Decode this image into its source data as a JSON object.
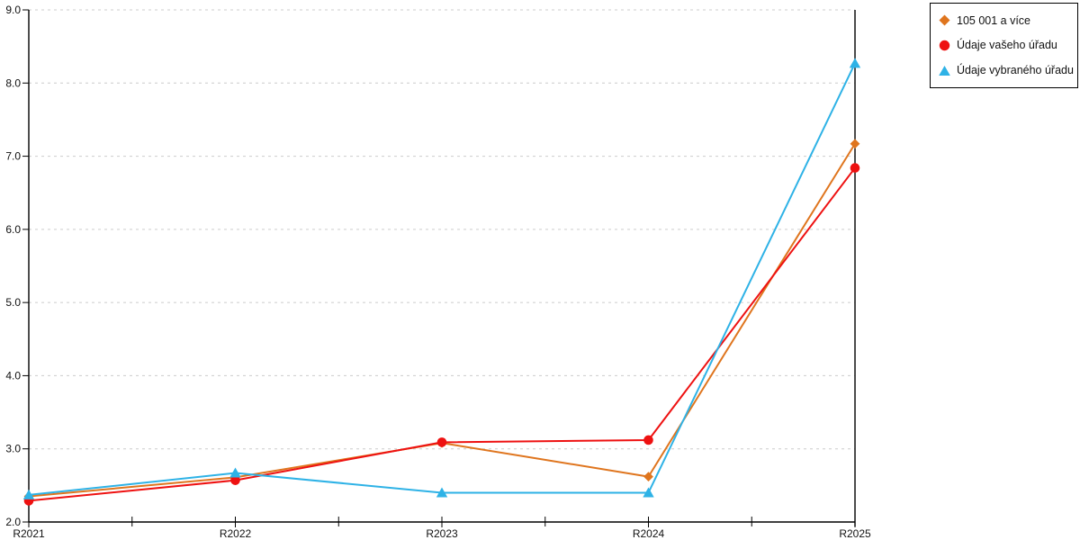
{
  "legend": {
    "items": [
      {
        "label": "105 001 a více",
        "marker": "diamond",
        "color": "#DF751E"
      },
      {
        "label": "Údaje vašeho úřadu",
        "marker": "circle",
        "color": "#EE1111"
      },
      {
        "label": "Údaje vybraného úřadu",
        "marker": "triangle",
        "color": "#2EB2E6"
      }
    ]
  },
  "chart_data": {
    "type": "line",
    "title": "",
    "xlabel": "",
    "ylabel": "",
    "categories": [
      "R2021",
      "R2022",
      "R2023",
      "R2024",
      "R2025"
    ],
    "series": [
      {
        "name": "105 001 a více",
        "marker": "diamond",
        "color": "#DF751E",
        "values": [
          2.35,
          2.61,
          3.08,
          2.62,
          7.17
        ]
      },
      {
        "name": "Údaje vašeho úřadu",
        "marker": "circle",
        "color": "#EE1111",
        "values": [
          2.29,
          2.57,
          3.09,
          3.12,
          6.84
        ]
      },
      {
        "name": "Údaje vybraného úřadu",
        "marker": "triangle",
        "color": "#2EB2E6",
        "values": [
          2.37,
          2.67,
          2.4,
          2.4,
          8.27
        ]
      }
    ],
    "ylim": [
      2.0,
      9.0
    ],
    "ytick_step": 1.0,
    "ytick_labels": [
      "2.0",
      "3.0",
      "4.0",
      "5.0",
      "6.0",
      "7.0",
      "8.0",
      "9.0"
    ],
    "grid": "horizontal-dashed",
    "grid_color": "#cccccc",
    "axis_color": "#000000",
    "legend_position": "top-right",
    "minor_xticks": "midpoints"
  }
}
